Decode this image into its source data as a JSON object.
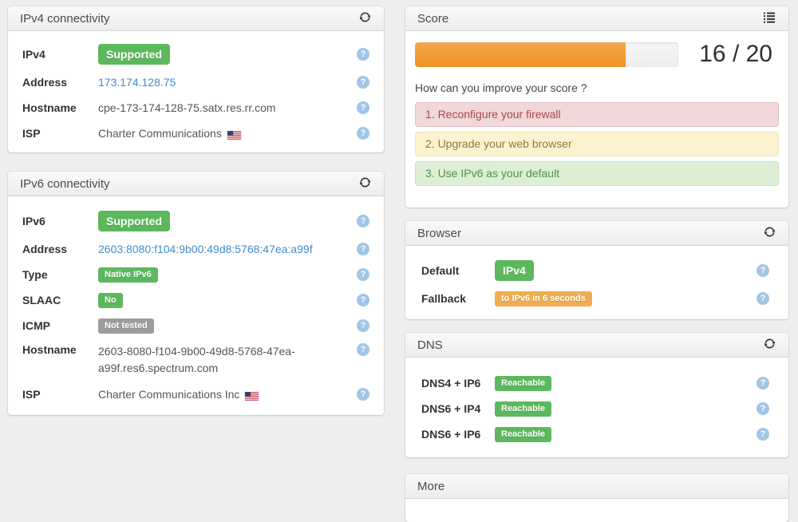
{
  "glyphs": {
    "help": "?"
  },
  "colors": {
    "success_badge": "#5cb85c",
    "warning_badge": "#f0ad4e",
    "muted_badge": "#9d9d9d",
    "link": "#428bca",
    "progress_fill": "#ec9121",
    "alert_danger_bg": "#f0d7d9",
    "alert_warning_bg": "#fbf2cf",
    "alert_success_bg": "#dcefd4"
  },
  "icons": {
    "panel_refresh": "refresh-icon",
    "score_menu": "list-icon",
    "row_help": "question-circle-icon",
    "isp_flag": "us-flag-icon"
  },
  "ipv4_panel": {
    "title": "IPv4 connectivity",
    "rows": {
      "ipv4": {
        "label": "IPv4",
        "value": "Supported"
      },
      "address": {
        "label": "Address",
        "value": "173.174.128.75"
      },
      "hostname": {
        "label": "Hostname",
        "value": "cpe-173-174-128-75.satx.res.rr.com"
      },
      "isp": {
        "label": "ISP",
        "value": "Charter Communications"
      }
    }
  },
  "ipv6_panel": {
    "title": "IPv6 connectivity",
    "rows": {
      "ipv6": {
        "label": "IPv6",
        "value": "Supported"
      },
      "address": {
        "label": "Address",
        "value": "2603:8080:f104:9b00:49d8:5768:47ea:a99f"
      },
      "type": {
        "label": "Type",
        "value": "Native IPv6"
      },
      "slaac": {
        "label": "SLAAC",
        "value": "No"
      },
      "icmp": {
        "label": "ICMP",
        "value": "Not tested"
      },
      "hostname": {
        "label": "Hostname",
        "value": "2603-8080-f104-9b00-49d8-5768-47ea-a99f.res6.spectrum.com"
      },
      "isp": {
        "label": "ISP",
        "value": "Charter Communications Inc"
      }
    }
  },
  "score_panel": {
    "title": "Score",
    "score_value": 16,
    "score_max": 20,
    "score_display": "16 / 20",
    "progress_percent": 80,
    "question": "How can you improve your score ?",
    "suggestions": [
      {
        "text": "1. Reconfigure your firewall",
        "severity": "danger"
      },
      {
        "text": "2. Upgrade your web browser",
        "severity": "warning"
      },
      {
        "text": "3. Use IPv6 as your default",
        "severity": "success"
      }
    ]
  },
  "browser_panel": {
    "title": "Browser",
    "rows": {
      "default": {
        "label": "Default",
        "value": "IPv4"
      },
      "fallback": {
        "label": "Fallback",
        "value": "to IPv6 in 6 seconds"
      }
    }
  },
  "dns_panel": {
    "title": "DNS",
    "rows": {
      "dns4_ip6": {
        "label": "DNS4 + IP6",
        "value": "Reachable"
      },
      "dns6_ip4": {
        "label": "DNS6 + IP4",
        "value": "Reachable"
      },
      "dns6_ip6": {
        "label": "DNS6 + IP6",
        "value": "Reachable"
      }
    }
  },
  "more_panel": {
    "title": "More"
  }
}
